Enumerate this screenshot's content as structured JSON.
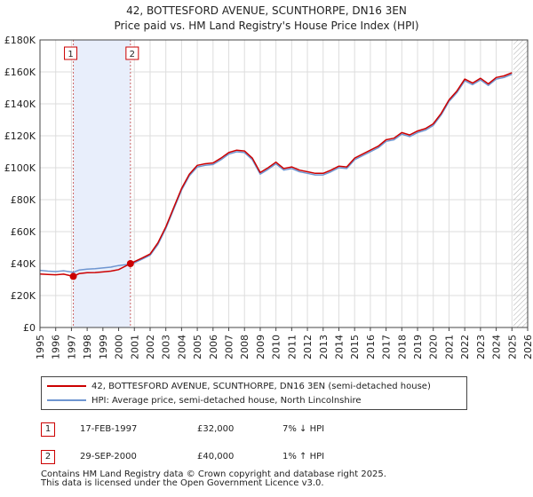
{
  "title_line1": "42, BOTTESFORD AVENUE, SCUNTHORPE, DN16 3EN",
  "title_line2": "Price paid vs. HM Land Registry's House Price Index (HPI)",
  "chart_data": {
    "type": "line",
    "title": "42, BOTTESFORD AVENUE, SCUNTHORPE, DN16 3EN — Price paid vs. HM Land Registry's House Price Index (HPI)",
    "xlabel": "",
    "ylabel": "",
    "xlim": [
      1995,
      2026
    ],
    "ylim": [
      0,
      180000
    ],
    "x_ticks": [
      "1995",
      "1996",
      "1997",
      "1998",
      "1999",
      "2000",
      "2001",
      "2002",
      "2003",
      "2004",
      "2005",
      "2006",
      "2007",
      "2008",
      "2009",
      "2010",
      "2011",
      "2012",
      "2013",
      "2014",
      "2015",
      "2016",
      "2017",
      "2018",
      "2019",
      "2020",
      "2021",
      "2022",
      "2023",
      "2024",
      "2025",
      "2026"
    ],
    "y_ticks": [
      {
        "value": 0,
        "label": "£0"
      },
      {
        "value": 20000,
        "label": "£20K"
      },
      {
        "value": 40000,
        "label": "£40K"
      },
      {
        "value": 60000,
        "label": "£60K"
      },
      {
        "value": 80000,
        "label": "£80K"
      },
      {
        "value": 100000,
        "label": "£100K"
      },
      {
        "value": 120000,
        "label": "£120K"
      },
      {
        "value": 140000,
        "label": "£140K"
      },
      {
        "value": 160000,
        "label": "£160K"
      },
      {
        "value": 180000,
        "label": "£180K"
      }
    ],
    "grid": true,
    "shaded_period": [
      1997.12,
      2000.75
    ],
    "future_hatch_from": 2025.1,
    "series": [
      {
        "name": "42, BOTTESFORD AVENUE, SCUNTHORPE, DN16 3EN (semi-detached house)",
        "color": "#cc0000",
        "x": [
          1995.0,
          1995.5,
          1996.0,
          1996.5,
          1997.12,
          1997.5,
          1998.0,
          1998.5,
          1999.0,
          1999.5,
          2000.0,
          2000.75,
          2001.0,
          2001.5,
          2002.0,
          2002.5,
          2003.0,
          2003.5,
          2004.0,
          2004.5,
          2005.0,
          2005.5,
          2006.0,
          2006.5,
          2007.0,
          2007.5,
          2008.0,
          2008.5,
          2009.0,
          2009.5,
          2010.0,
          2010.5,
          2011.0,
          2011.5,
          2012.0,
          2012.5,
          2013.0,
          2013.5,
          2014.0,
          2014.5,
          2015.0,
          2015.5,
          2016.0,
          2016.5,
          2017.0,
          2017.5,
          2018.0,
          2018.5,
          2019.0,
          2019.5,
          2020.0,
          2020.5,
          2021.0,
          2021.5,
          2022.0,
          2022.5,
          2023.0,
          2023.5,
          2024.0,
          2024.5,
          2025.0
        ],
        "y": [
          33500,
          33200,
          33000,
          33400,
          32000,
          33800,
          34300,
          34400,
          34800,
          35300,
          36200,
          40000,
          41200,
          43500,
          46000,
          53000,
          63000,
          75000,
          87000,
          96000,
          101500,
          102500,
          103000,
          106000,
          109500,
          111000,
          110500,
          106000,
          97000,
          100000,
          103500,
          99500,
          100500,
          98500,
          97500,
          96500,
          96500,
          98500,
          101000,
          100500,
          106000,
          108500,
          111000,
          113500,
          117500,
          118500,
          122000,
          120500,
          123000,
          124500,
          127500,
          134000,
          142500,
          148000,
          155500,
          153000,
          156000,
          152500,
          156500,
          157500,
          159500
        ]
      },
      {
        "name": "HPI: Average price, semi-detached house, North Lincolnshire",
        "color": "#6f96d1",
        "x": [
          1995.0,
          1995.5,
          1996.0,
          1996.5,
          1997.12,
          1997.5,
          1998.0,
          1998.5,
          1999.0,
          1999.5,
          2000.0,
          2000.75,
          2001.0,
          2001.5,
          2002.0,
          2002.5,
          2003.0,
          2003.5,
          2004.0,
          2004.5,
          2005.0,
          2005.5,
          2006.0,
          2006.5,
          2007.0,
          2007.5,
          2008.0,
          2008.5,
          2009.0,
          2009.5,
          2010.0,
          2010.5,
          2011.0,
          2011.5,
          2012.0,
          2012.5,
          2013.0,
          2013.5,
          2014.0,
          2014.5,
          2015.0,
          2015.5,
          2016.0,
          2016.5,
          2017.0,
          2017.5,
          2018.0,
          2018.5,
          2019.0,
          2019.5,
          2020.0,
          2020.5,
          2021.0,
          2021.5,
          2022.0,
          2022.5,
          2023.0,
          2023.5,
          2024.0,
          2024.5,
          2025.0
        ],
        "y": [
          35800,
          35300,
          35000,
          35500,
          34500,
          36000,
          36500,
          36800,
          37300,
          37800,
          38800,
          39700,
          40500,
          42800,
          45200,
          52000,
          62000,
          74000,
          86000,
          95000,
          100500,
          101500,
          102000,
          105000,
          108500,
          110000,
          109500,
          105000,
          96000,
          99000,
          102500,
          98500,
          99500,
          97500,
          96500,
          95500,
          95500,
          97500,
          100000,
          99500,
          105000,
          107500,
          110000,
          112500,
          116500,
          117500,
          121000,
          119500,
          122000,
          123500,
          126500,
          133000,
          141500,
          147000,
          154500,
          152000,
          155000,
          151500,
          155500,
          156500,
          158500
        ]
      }
    ],
    "transactions": [
      {
        "num": "1",
        "x": 1997.12,
        "y": 32000,
        "date": "17-FEB-1997",
        "price": "£32,000",
        "hpi": "7% ↓ HPI"
      },
      {
        "num": "2",
        "x": 2000.75,
        "y": 40000,
        "date": "29-SEP-2000",
        "price": "£40,000",
        "hpi": "1% ↑ HPI"
      }
    ]
  },
  "legend": {
    "property_label": "42, BOTTESFORD AVENUE, SCUNTHORPE, DN16 3EN (semi-detached house)",
    "hpi_label": "HPI: Average price, semi-detached house, North Lincolnshire"
  },
  "footer": {
    "line1": "Contains HM Land Registry data © Crown copyright and database right 2025.",
    "line2": "This data is licensed under the Open Government Licence v3.0."
  }
}
